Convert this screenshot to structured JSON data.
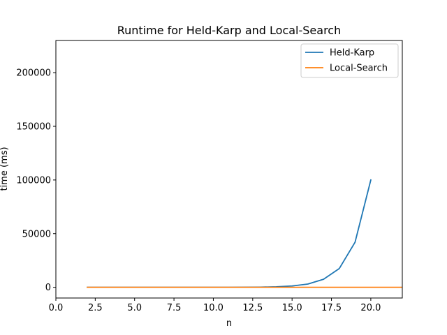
{
  "chart_data": {
    "type": "line",
    "title": "Runtime for Held-Karp and Local-Search",
    "xlabel": "n",
    "ylabel": "time (ms)",
    "xlim": [
      0,
      22
    ],
    "ylim": [
      -10000,
      230000
    ],
    "xticks": [
      {
        "value": 0,
        "label": "0.0"
      },
      {
        "value": 2.5,
        "label": "2.5"
      },
      {
        "value": 5,
        "label": "5.0"
      },
      {
        "value": 7.5,
        "label": "7.5"
      },
      {
        "value": 10,
        "label": "10.0"
      },
      {
        "value": 12.5,
        "label": "12.5"
      },
      {
        "value": 15,
        "label": "15.0"
      },
      {
        "value": 17.5,
        "label": "17.5"
      },
      {
        "value": 20,
        "label": "20.0"
      }
    ],
    "yticks": [
      {
        "value": 0,
        "label": "0"
      },
      {
        "value": 50000,
        "label": "50000"
      },
      {
        "value": 100000,
        "label": "100000"
      },
      {
        "value": 150000,
        "label": "150000"
      },
      {
        "value": 200000,
        "label": "200000"
      }
    ],
    "grid": false,
    "legend_position": "top-right",
    "series": [
      {
        "name": "Held-Karp",
        "color": "#1f77b4",
        "x": [
          2,
          3,
          4,
          5,
          6,
          7,
          8,
          9,
          10,
          11,
          12,
          13,
          14,
          15,
          16,
          17,
          18,
          19,
          20
        ],
        "y": [
          0,
          0,
          0,
          0,
          0,
          0,
          1,
          3,
          8,
          20,
          50,
          150,
          450,
          1200,
          3000,
          7500,
          17500,
          42000,
          100000
        ]
      },
      {
        "name": "Local-Search",
        "color": "#ff7f0e",
        "x": [
          2,
          3,
          4,
          5,
          6,
          7,
          8,
          9,
          10,
          11,
          12,
          13,
          14,
          15,
          16,
          17,
          18,
          19,
          20,
          21,
          22
        ],
        "y": [
          0,
          0,
          0,
          0,
          0,
          0,
          0,
          0,
          0,
          0,
          0,
          0,
          0,
          0,
          0,
          0,
          0,
          0,
          0,
          0,
          0
        ]
      }
    ]
  }
}
